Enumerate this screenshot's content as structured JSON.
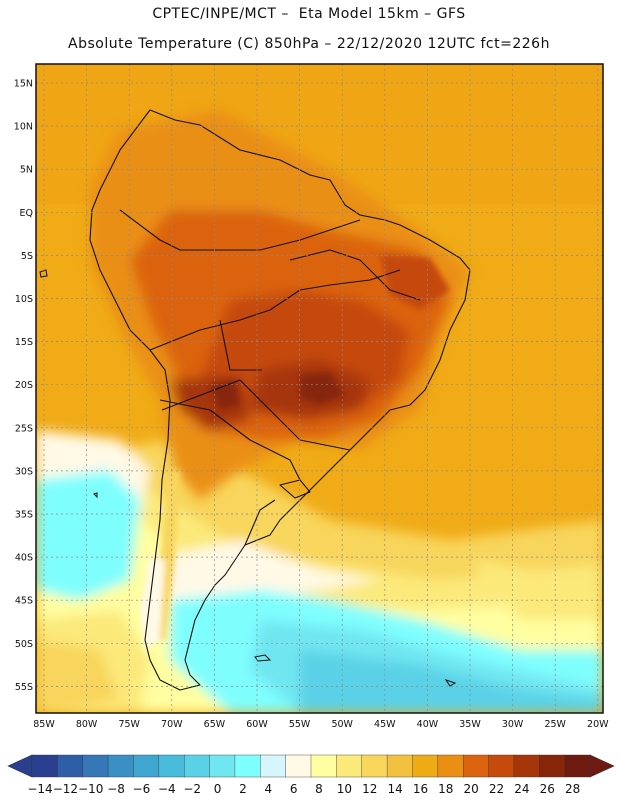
{
  "header": {
    "line1": "CPTEC/INPE/MCT –  Eta Model 15km – GFS",
    "line2": "Absolute Temperature (C) 850hPa – 22/12/2020 12UTC fct=226h"
  },
  "map": {
    "lat_labels": [
      "15N",
      "10N",
      "5N",
      "EQ",
      "5S",
      "10S",
      "15S",
      "20S",
      "25S",
      "30S",
      "35S",
      "40S",
      "45S",
      "50S",
      "55S"
    ],
    "lon_labels": [
      "85W",
      "80W",
      "75W",
      "70W",
      "65W",
      "60W",
      "55W",
      "50W",
      "45W",
      "40W",
      "35W",
      "30W",
      "25W",
      "20W"
    ],
    "extent": {
      "lon_west": -86,
      "lon_east": -19,
      "lat_north": 17,
      "lat_south": -58
    }
  },
  "colorbar": {
    "labels": [
      "-14",
      "-12",
      "-10",
      "-8",
      "-6",
      "-4",
      "-2",
      "0",
      "2",
      "4",
      "6",
      "8",
      "10",
      "12",
      "14",
      "16",
      "18",
      "20",
      "22",
      "24",
      "26",
      "28"
    ],
    "colors": [
      "#2a3f8f",
      "#2f5ea8",
      "#3577b7",
      "#3a90c4",
      "#3fa6cf",
      "#49bcdb",
      "#5ad1e6",
      "#6fe6f0",
      "#7ffefe",
      "#d6f6fd",
      "#fff9e6",
      "#fffea0",
      "#fbe97a",
      "#f8d55b",
      "#f2c13f",
      "#efab16",
      "#ea8f14",
      "#dc6410",
      "#c54a0c",
      "#a6360a",
      "#872608",
      "#6e1a10"
    ]
  }
}
